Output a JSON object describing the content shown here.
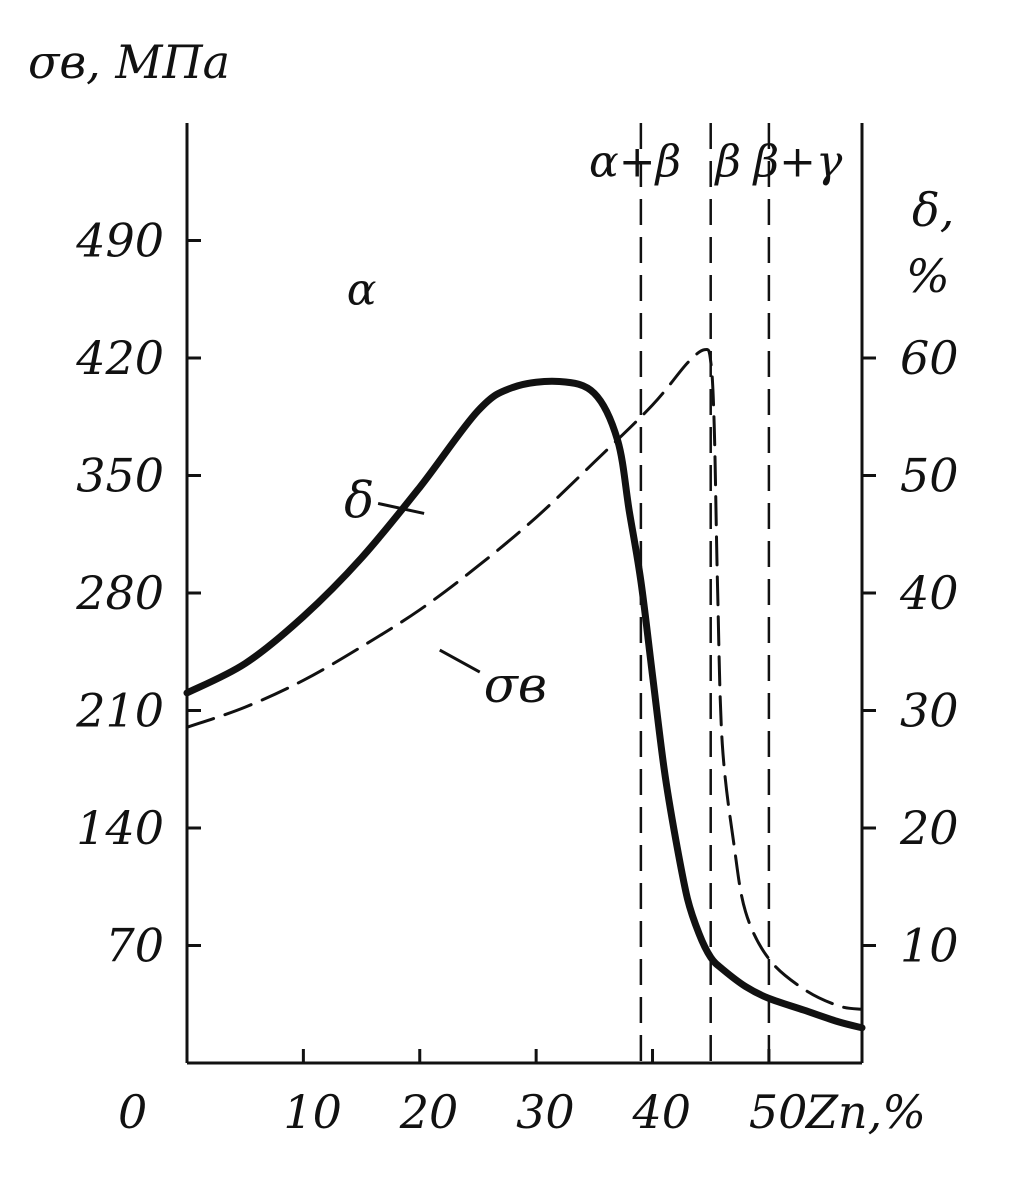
{
  "chart_data": {
    "type": "line",
    "y_left_label": "σв, МПа",
    "y_right_label_line1": "δ,",
    "y_right_label_line2": "%",
    "x_label": "Zn,%",
    "x_range": [
      0,
      58
    ],
    "y_left_range": [
      0,
      560
    ],
    "y_right_range": [
      0,
      80
    ],
    "x_ticks": [
      {
        "value": 0,
        "label": "0"
      },
      {
        "value": 10,
        "label": "10"
      },
      {
        "value": 20,
        "label": "20"
      },
      {
        "value": 30,
        "label": "30"
      },
      {
        "value": 40,
        "label": "40"
      },
      {
        "value": 50,
        "label": "50"
      }
    ],
    "y_left_ticks": [
      {
        "value": 70,
        "label": "70"
      },
      {
        "value": 140,
        "label": "140"
      },
      {
        "value": 210,
        "label": "210"
      },
      {
        "value": 280,
        "label": "280"
      },
      {
        "value": 350,
        "label": "350"
      },
      {
        "value": 420,
        "label": "420"
      },
      {
        "value": 490,
        "label": "490"
      }
    ],
    "y_right_ticks": [
      {
        "value": 10,
        "label": "10"
      },
      {
        "value": 20,
        "label": "20"
      },
      {
        "value": 30,
        "label": "30"
      },
      {
        "value": 40,
        "label": "40"
      },
      {
        "value": 50,
        "label": "50"
      },
      {
        "value": 60,
        "label": "60"
      }
    ],
    "phase_boundaries": [
      39,
      45,
      50,
      58
    ],
    "phase_labels": [
      {
        "text": "α",
        "x": 15,
        "y": 452
      },
      {
        "text": "α+β",
        "x": 38.5,
        "y": 528
      },
      {
        "text": "β",
        "x": 46.5,
        "y": 528
      },
      {
        "text": "β+γ",
        "x": 52.5,
        "y": 528
      }
    ],
    "series": [
      {
        "name": "δ",
        "axis": "right",
        "style": "solid",
        "points": [
          [
            0,
            31.5
          ],
          [
            5,
            34
          ],
          [
            10,
            38
          ],
          [
            15,
            43
          ],
          [
            20,
            49
          ],
          [
            25,
            55.5
          ],
          [
            28,
            57.5
          ],
          [
            32,
            58
          ],
          [
            35,
            57
          ],
          [
            37,
            53
          ],
          [
            38,
            47
          ],
          [
            39,
            41
          ],
          [
            40,
            33
          ],
          [
            41,
            25
          ],
          [
            42,
            19
          ],
          [
            43,
            14
          ],
          [
            44,
            11
          ],
          [
            45,
            9
          ],
          [
            46,
            8
          ],
          [
            48,
            6.5
          ],
          [
            50,
            5.5
          ],
          [
            53,
            4.5
          ],
          [
            56,
            3.5
          ],
          [
            58,
            3
          ]
        ]
      },
      {
        "name": "σв",
        "axis": "left",
        "style": "dashed",
        "points": [
          [
            0,
            200
          ],
          [
            5,
            212
          ],
          [
            10,
            228
          ],
          [
            15,
            248
          ],
          [
            20,
            270
          ],
          [
            25,
            296
          ],
          [
            30,
            325
          ],
          [
            35,
            358
          ],
          [
            40,
            392
          ],
          [
            43,
            417
          ],
          [
            44.5,
            425
          ],
          [
            45,
            418
          ],
          [
            45.3,
            380
          ],
          [
            45.6,
            280
          ],
          [
            46,
            190
          ],
          [
            47,
            130
          ],
          [
            48,
            90
          ],
          [
            50,
            62
          ],
          [
            53,
            44
          ],
          [
            56,
            34
          ],
          [
            58,
            32
          ]
        ]
      }
    ],
    "annotations": [
      {
        "text": "δ",
        "x": 13.5,
        "y": 325
      },
      {
        "text": "σв",
        "x": 25.5,
        "y": 215
      }
    ]
  }
}
